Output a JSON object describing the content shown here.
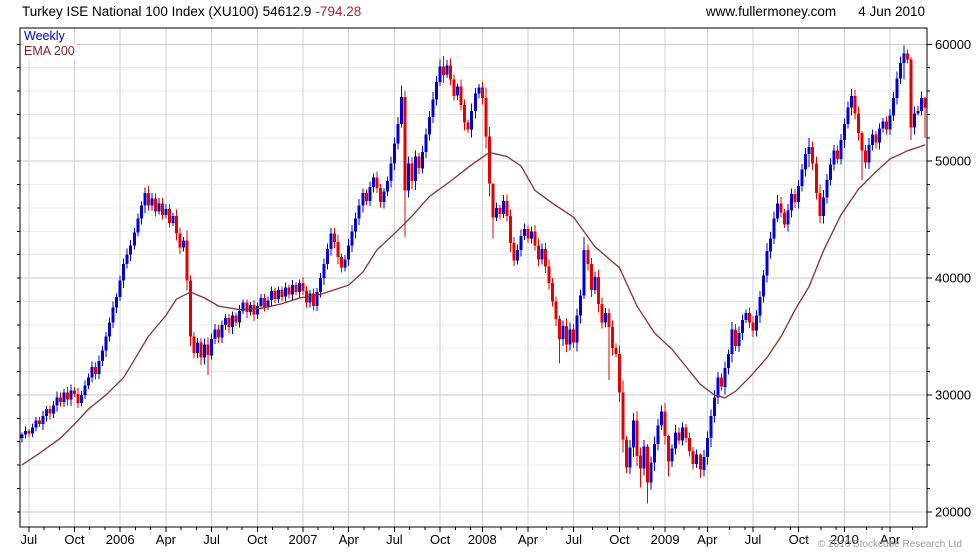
{
  "header": {
    "title_main": "Turkey ISE National 100 Index (XU100)",
    "last_value": "54612.9",
    "change": "-794.28",
    "site": "www.fullermoney.com",
    "date": "4 Jun 2010"
  },
  "legend": {
    "series1": "Weekly",
    "series2": "EMA 200"
  },
  "footer": {
    "copyright": "© 2010 Stockcube Research Ltd"
  },
  "colors": {
    "up_candle": "#0000d6",
    "down_candle": "#e60000",
    "ema_line": "#8b2f2f",
    "legend_weekly": "#0000cc",
    "legend_ema": "#8b2222",
    "change_text": "#b22222",
    "grid_major": "#c9c9c9",
    "grid_vertical": "#d2d2d2",
    "grid_minor": "#ebebeb",
    "axis_border": "#000000",
    "copyright_text": "#9a9a9a"
  },
  "chart_data": {
    "type": "candlestick",
    "title": "Turkey ISE National 100 Index (XU100)",
    "interval": "Weekly",
    "overlay": "EMA 200",
    "weeks": 258,
    "ylim": [
      18700,
      61400
    ],
    "y_ticks": [
      20000,
      30000,
      40000,
      50000,
      60000
    ],
    "y_minor_step": 2000,
    "x_ticks": [
      {
        "label": "Jul",
        "week": 2
      },
      {
        "label": "Oct",
        "week": 15
      },
      {
        "label": "2006",
        "week": 28
      },
      {
        "label": "Apr",
        "week": 41
      },
      {
        "label": "Jul",
        "week": 54
      },
      {
        "label": "Oct",
        "week": 67
      },
      {
        "label": "2007",
        "week": 80
      },
      {
        "label": "Apr",
        "week": 93
      },
      {
        "label": "Jul",
        "week": 106
      },
      {
        "label": "Oct",
        "week": 119
      },
      {
        "label": "2008",
        "week": 131
      },
      {
        "label": "Apr",
        "week": 144
      },
      {
        "label": "Jul",
        "week": 157
      },
      {
        "label": "Oct",
        "week": 170
      },
      {
        "label": "2009",
        "week": 183
      },
      {
        "label": "Apr",
        "week": 195
      },
      {
        "label": "Jul",
        "week": 208
      },
      {
        "label": "Oct",
        "week": 221
      },
      {
        "label": "2010",
        "week": 234
      },
      {
        "label": "Apr",
        "week": 247
      }
    ],
    "x_minor_start_week": 2,
    "x_minor_step_weeks": 4.3333,
    "series": [
      {
        "name": "Weekly",
        "kind": "candles",
        "closes": [
          26600,
          26900,
          26700,
          27200,
          27800,
          27500,
          28200,
          28800,
          28400,
          29100,
          29800,
          29400,
          30200,
          29600,
          30400,
          30100,
          29300,
          30000,
          30800,
          31500,
          32400,
          31800,
          32900,
          33800,
          35000,
          36200,
          37500,
          38400,
          39800,
          41200,
          42000,
          42800,
          43900,
          45100,
          46200,
          47300,
          46200,
          46800,
          45700,
          46400,
          45400,
          45900,
          44700,
          45300,
          43800,
          42600,
          43200,
          39800,
          35000,
          33600,
          34500,
          33200,
          34300,
          33400,
          34800,
          35600,
          34900,
          36000,
          36600,
          35800,
          36800,
          36200,
          37200,
          37900,
          37100,
          37700,
          36900,
          37600,
          38300,
          37500,
          38100,
          38900,
          38200,
          39000,
          38400,
          39200,
          38600,
          39400,
          38800,
          39600,
          38900,
          37900,
          38700,
          37600,
          38800,
          40000,
          41200,
          42500,
          43800,
          43100,
          41800,
          40900,
          41600,
          42800,
          44000,
          45100,
          46200,
          47300,
          46600,
          47800,
          48600,
          47700,
          46500,
          47400,
          48300,
          49800,
          51500,
          53200,
          55500,
          47500,
          49800,
          48300,
          50400,
          49400,
          50800,
          52300,
          53800,
          55300,
          56800,
          58100,
          57400,
          58200,
          57000,
          55600,
          56400,
          54800,
          53300,
          52700,
          54300,
          55800,
          56300,
          55400,
          52100,
          48100,
          45200,
          46000,
          45500,
          46600,
          45300,
          43000,
          41500,
          42400,
          43600,
          44200,
          43400,
          44000,
          42800,
          41600,
          42500,
          41000,
          39600,
          38000,
          36500,
          34800,
          35900,
          34300,
          35600,
          34500,
          36800,
          38500,
          42400,
          41200,
          39000,
          40100,
          37800,
          36200,
          37000,
          35800,
          34000,
          33500,
          30200,
          26200,
          23800,
          25500,
          27800,
          24800,
          23700,
          25600,
          22500,
          24200,
          25800,
          27400,
          28600,
          26500,
          24300,
          25400,
          26800,
          26100,
          27200,
          26300,
          25200,
          24100,
          24900,
          23600,
          24700,
          26300,
          28200,
          29800,
          31500,
          30700,
          32300,
          33500,
          35600,
          34200,
          35300,
          36400,
          37000,
          36200,
          35500,
          36800,
          38400,
          40200,
          42300,
          43400,
          45100,
          46400,
          45600,
          44600,
          45800,
          47200,
          46500,
          47900,
          49300,
          50600,
          51200,
          49800,
          47300,
          45300,
          46900,
          48400,
          49700,
          50900,
          50200,
          51800,
          53200,
          54600,
          55600,
          54100,
          52400,
          50900,
          49900,
          51400,
          52300,
          51600,
          52800,
          53400,
          52700,
          53900,
          55400,
          57100,
          58400,
          59200,
          58700,
          52900,
          54100,
          54300,
          55407,
          54613
        ],
        "wick_overrides": {
          "48": [
            40200,
            34200
          ],
          "53": [
            34900,
            31700
          ],
          "108": [
            56500,
            52900
          ],
          "109": [
            56000,
            43500
          ],
          "120": [
            59000,
            56700
          ],
          "134": [
            46300,
            43400
          ],
          "153": [
            36800,
            32700
          ],
          "160": [
            43500,
            38200
          ],
          "167": [
            37400,
            31300
          ],
          "172": [
            26500,
            23300
          ],
          "176": [
            25500,
            22100
          ],
          "178": [
            25800,
            20700
          ],
          "184": [
            26600,
            23000
          ],
          "193": [
            25000,
            22900
          ],
          "215": [
            47100,
            44800
          ],
          "224": [
            52000,
            49500
          ],
          "227": [
            48000,
            44700
          ],
          "236": [
            56200,
            53900
          ],
          "239": [
            52600,
            48400
          ],
          "251": [
            59900,
            57000
          ],
          "253": [
            58900,
            51800
          ],
          "257": [
            55500,
            52000
          ]
        }
      },
      {
        "name": "EMA 200",
        "kind": "line",
        "points": [
          [
            0,
            24000
          ],
          [
            5,
            25000
          ],
          [
            11,
            26300
          ],
          [
            15,
            27500
          ],
          [
            19,
            28800
          ],
          [
            24,
            30000
          ],
          [
            29,
            31500
          ],
          [
            32,
            33000
          ],
          [
            36,
            35000
          ],
          [
            41,
            36800
          ],
          [
            44,
            38200
          ],
          [
            48,
            38800
          ],
          [
            52,
            38300
          ],
          [
            56,
            37600
          ],
          [
            62,
            37300
          ],
          [
            68,
            37400
          ],
          [
            74,
            37800
          ],
          [
            79,
            38300
          ],
          [
            85,
            38600
          ],
          [
            89,
            39000
          ],
          [
            93,
            39400
          ],
          [
            97,
            40500
          ],
          [
            101,
            42400
          ],
          [
            106,
            43800
          ],
          [
            111,
            45300
          ],
          [
            116,
            47000
          ],
          [
            122,
            48300
          ],
          [
            128,
            49700
          ],
          [
            133,
            50750
          ],
          [
            138,
            50400
          ],
          [
            142,
            49600
          ],
          [
            146,
            47500
          ],
          [
            151,
            46400
          ],
          [
            157,
            45200
          ],
          [
            163,
            42700
          ],
          [
            168,
            41400
          ],
          [
            170,
            40900
          ],
          [
            175,
            37600
          ],
          [
            180,
            35300
          ],
          [
            185,
            33900
          ],
          [
            189,
            32400
          ],
          [
            193,
            30900
          ],
          [
            197,
            30000
          ],
          [
            200,
            29750
          ],
          [
            203,
            30300
          ],
          [
            207,
            31500
          ],
          [
            212,
            33200
          ],
          [
            216,
            35000
          ],
          [
            220,
            37300
          ],
          [
            224,
            39300
          ],
          [
            228,
            42300
          ],
          [
            233,
            45400
          ],
          [
            238,
            47600
          ],
          [
            243,
            49100
          ],
          [
            247,
            50200
          ],
          [
            252,
            50900
          ],
          [
            257,
            51400
          ]
        ]
      }
    ]
  }
}
